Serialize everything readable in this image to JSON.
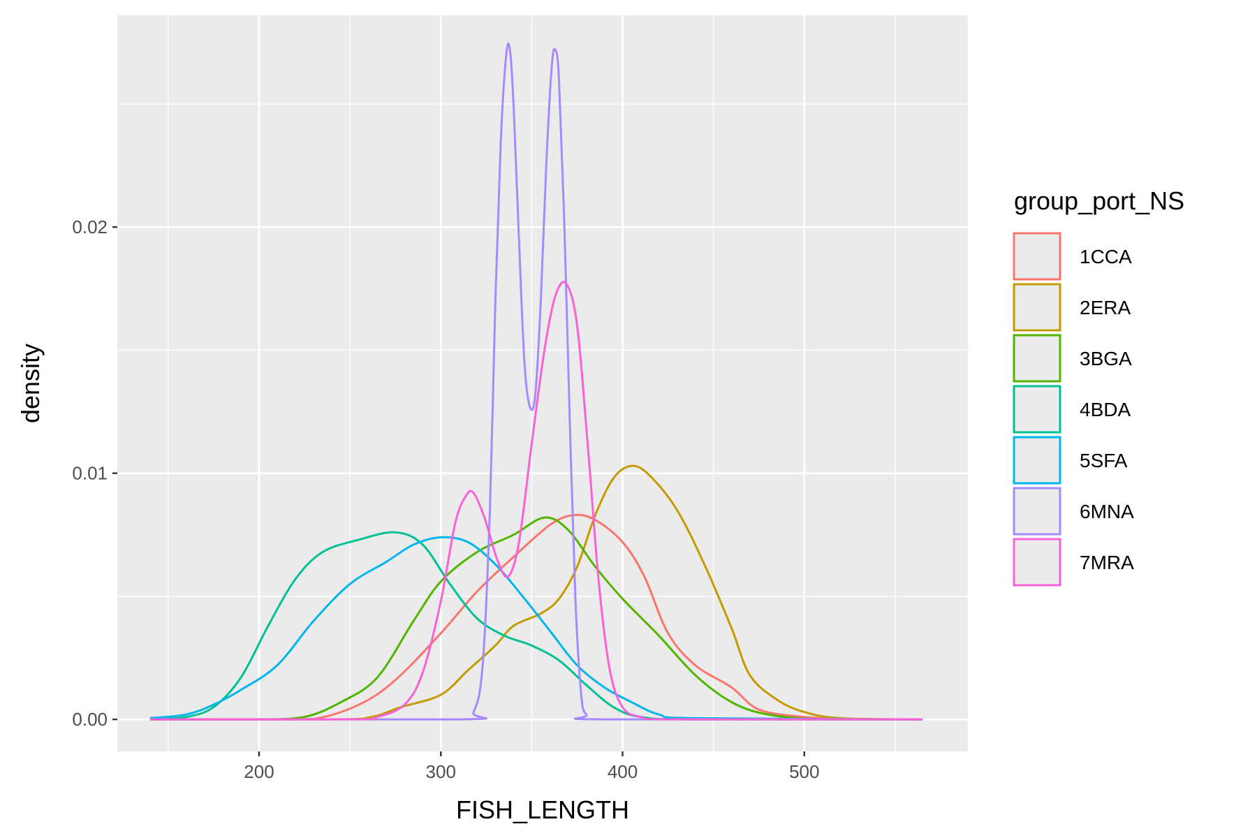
{
  "chart_data": {
    "type": "line",
    "subtype": "density",
    "title": "",
    "xlabel": "FISH_LENGTH",
    "ylabel": "density",
    "xlim": [
      122,
      590
    ],
    "ylim": [
      -0.0013,
      0.0286
    ],
    "x_ticks": [
      200,
      300,
      400,
      500
    ],
    "x_tick_labels": [
      "200",
      "300",
      "400",
      "500"
    ],
    "x_minor_ticks": [
      150,
      250,
      350,
      450,
      550
    ],
    "y_ticks": [
      0.0,
      0.01,
      0.02
    ],
    "y_tick_labels": [
      "0.00",
      "0.01",
      "0.02"
    ],
    "y_minor_ticks": [
      0.005,
      0.015,
      0.025
    ],
    "grid": true,
    "legend": {
      "title": "group_port_NS",
      "position": "right"
    },
    "colors": {
      "panel_background": "#ebebeb",
      "grid": "#ffffff",
      "tick_mark": "#333333"
    },
    "series": [
      {
        "name": "1CCA",
        "color": "#F8766D",
        "points": [
          [
            140,
            0
          ],
          [
            200,
            0
          ],
          [
            230,
            2e-05
          ],
          [
            255,
            0.0006
          ],
          [
            275,
            0.0016
          ],
          [
            300,
            0.0035
          ],
          [
            320,
            0.0052
          ],
          [
            340,
            0.0066
          ],
          [
            360,
            0.0079
          ],
          [
            373,
            0.0083
          ],
          [
            385,
            0.0081
          ],
          [
            400,
            0.0072
          ],
          [
            412,
            0.0058
          ],
          [
            425,
            0.0035
          ],
          [
            440,
            0.0022
          ],
          [
            460,
            0.0013
          ],
          [
            475,
            0.0004
          ],
          [
            500,
            0.0001
          ],
          [
            530,
            0
          ],
          [
            565,
            0
          ]
        ]
      },
      {
        "name": "2ERA",
        "color": "#C49A00",
        "points": [
          [
            140,
            0
          ],
          [
            240,
            0
          ],
          [
            262,
            0.0001
          ],
          [
            278,
            0.0005
          ],
          [
            300,
            0.001
          ],
          [
            315,
            0.002
          ],
          [
            330,
            0.003
          ],
          [
            340,
            0.0038
          ],
          [
            355,
            0.0043
          ],
          [
            365,
            0.0049
          ],
          [
            375,
            0.0062
          ],
          [
            385,
            0.0083
          ],
          [
            395,
            0.0098
          ],
          [
            405,
            0.0103
          ],
          [
            415,
            0.0099
          ],
          [
            430,
            0.0085
          ],
          [
            445,
            0.0063
          ],
          [
            460,
            0.0037
          ],
          [
            470,
            0.0018
          ],
          [
            485,
            0.0008
          ],
          [
            500,
            0.0003
          ],
          [
            520,
            5e-05
          ],
          [
            565,
            0
          ]
        ]
      },
      {
        "name": "3BGA",
        "color": "#53B400",
        "points": [
          [
            140,
            0
          ],
          [
            200,
            0
          ],
          [
            225,
            0.0001
          ],
          [
            245,
            0.0007
          ],
          [
            265,
            0.0017
          ],
          [
            285,
            0.004
          ],
          [
            300,
            0.0056
          ],
          [
            320,
            0.0068
          ],
          [
            340,
            0.0075
          ],
          [
            357,
            0.0082
          ],
          [
            370,
            0.0077
          ],
          [
            385,
            0.0062
          ],
          [
            400,
            0.0049
          ],
          [
            420,
            0.0034
          ],
          [
            440,
            0.0018
          ],
          [
            460,
            0.0007
          ],
          [
            480,
            0.0002
          ],
          [
            510,
            0
          ],
          [
            565,
            0
          ]
        ]
      },
      {
        "name": "4BDA",
        "color": "#00C094",
        "points": [
          [
            140,
            0
          ],
          [
            160,
            0.0001
          ],
          [
            175,
            0.0005
          ],
          [
            190,
            0.0017
          ],
          [
            205,
            0.0038
          ],
          [
            220,
            0.0057
          ],
          [
            235,
            0.0068
          ],
          [
            255,
            0.0073
          ],
          [
            275,
            0.0076
          ],
          [
            290,
            0.0071
          ],
          [
            305,
            0.0055
          ],
          [
            320,
            0.0041
          ],
          [
            335,
            0.0034
          ],
          [
            350,
            0.003
          ],
          [
            365,
            0.0024
          ],
          [
            380,
            0.0014
          ],
          [
            395,
            0.0005
          ],
          [
            410,
            0.0001
          ],
          [
            440,
            0
          ],
          [
            565,
            0
          ]
        ]
      },
      {
        "name": "5SFA",
        "color": "#00B6EB",
        "points": [
          [
            140,
            5e-05
          ],
          [
            160,
            0.0002
          ],
          [
            175,
            0.0006
          ],
          [
            190,
            0.0012
          ],
          [
            210,
            0.0022
          ],
          [
            230,
            0.004
          ],
          [
            250,
            0.0055
          ],
          [
            270,
            0.0064
          ],
          [
            285,
            0.0071
          ],
          [
            300,
            0.0074
          ],
          [
            315,
            0.0072
          ],
          [
            330,
            0.0063
          ],
          [
            345,
            0.005
          ],
          [
            360,
            0.0036
          ],
          [
            375,
            0.0022
          ],
          [
            390,
            0.0013
          ],
          [
            405,
            0.0007
          ],
          [
            420,
            0.0002
          ],
          [
            440,
            5e-05
          ],
          [
            565,
            0
          ]
        ]
      },
      {
        "name": "6MNA",
        "color": "#A58AFF",
        "points": [
          [
            140,
            0
          ],
          [
            310,
            0
          ],
          [
            318,
            0.0003
          ],
          [
            323,
            0.0022
          ],
          [
            327,
            0.0085
          ],
          [
            330,
            0.017
          ],
          [
            333,
            0.0235
          ],
          [
            336,
            0.027
          ],
          [
            338,
            0.0272
          ],
          [
            340,
            0.025
          ],
          [
            343,
            0.0195
          ],
          [
            346,
            0.0145
          ],
          [
            349,
            0.0127
          ],
          [
            352,
            0.0132
          ],
          [
            355,
            0.017
          ],
          [
            358,
            0.0225
          ],
          [
            361,
            0.0265
          ],
          [
            363,
            0.0272
          ],
          [
            365,
            0.026
          ],
          [
            368,
            0.02
          ],
          [
            371,
            0.012
          ],
          [
            374,
            0.005
          ],
          [
            377,
            0.0012
          ],
          [
            380,
            0.0002
          ],
          [
            390,
            0
          ],
          [
            565,
            0
          ]
        ]
      },
      {
        "name": "7MRA",
        "color": "#FB61D7",
        "points": [
          [
            140,
            0
          ],
          [
            250,
            0
          ],
          [
            265,
            0.0001
          ],
          [
            280,
            0.0006
          ],
          [
            290,
            0.0019
          ],
          [
            300,
            0.0048
          ],
          [
            308,
            0.008
          ],
          [
            314,
            0.0091
          ],
          [
            318,
            0.0092
          ],
          [
            324,
            0.0082
          ],
          [
            331,
            0.0065
          ],
          [
            337,
            0.0058
          ],
          [
            343,
            0.0072
          ],
          [
            350,
            0.0112
          ],
          [
            357,
            0.015
          ],
          [
            363,
            0.0172
          ],
          [
            369,
            0.0177
          ],
          [
            375,
            0.016
          ],
          [
            381,
            0.011
          ],
          [
            387,
            0.0055
          ],
          [
            393,
            0.002
          ],
          [
            400,
            0.0005
          ],
          [
            410,
            0.0001
          ],
          [
            430,
            0
          ],
          [
            565,
            0
          ]
        ]
      }
    ]
  }
}
